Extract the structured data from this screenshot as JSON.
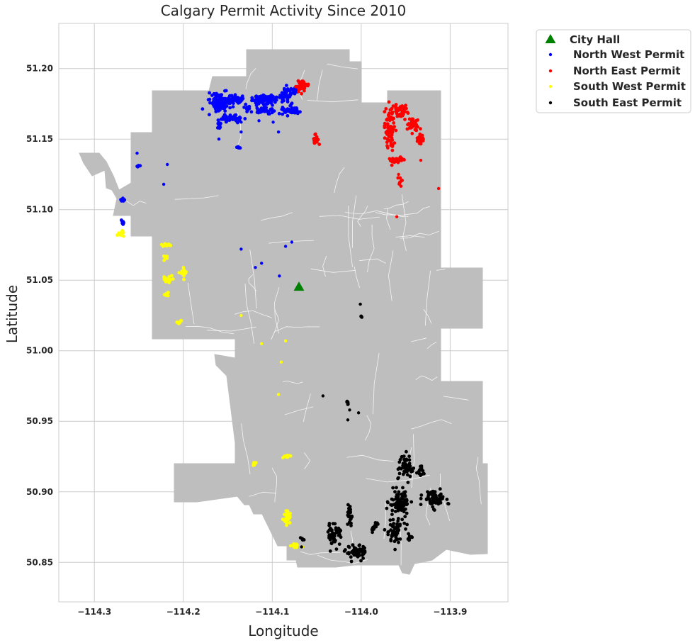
{
  "chart_data": {
    "type": "scatter",
    "title": "Calgary Permit Activity Since 2010",
    "xlabel": "Longitude",
    "ylabel": "Latitude",
    "xlim": [
      -114.34,
      -113.835
    ],
    "ylim": [
      50.822,
      51.232
    ],
    "x_ticks": [
      -114.3,
      -114.2,
      -114.1,
      -114.0,
      -113.9
    ],
    "x_tick_labels": [
      "−114.3",
      "−114.2",
      "−114.1",
      "−114.0",
      "−113.9"
    ],
    "y_ticks": [
      50.85,
      50.9,
      50.95,
      51.0,
      51.05,
      51.1,
      51.15,
      51.2
    ],
    "y_tick_labels": [
      "50.85",
      "50.90",
      "50.95",
      "51.00",
      "51.05",
      "51.10",
      "51.15",
      "51.20"
    ],
    "grid": true,
    "legend_position": "outside-top-right",
    "colors": {
      "city_boundary": "#bebebe",
      "district_lines": "#ffffff",
      "grid": "#cccccc",
      "axes_frame": "#cccccc",
      "city_hall": "#008000"
    },
    "city_hall": {
      "name": "City Hall",
      "x": -114.07,
      "y": 51.045,
      "marker": "triangle",
      "color": "#008000"
    },
    "series": [
      {
        "name": "North West Permit",
        "color": "#0000ff",
        "clusters": [
          {
            "x": -114.158,
            "y": 51.176,
            "rx": 0.012,
            "ry": 0.006,
            "n": 120
          },
          {
            "x": -114.14,
            "y": 51.178,
            "rx": 0.006,
            "ry": 0.003,
            "n": 45
          },
          {
            "x": -114.11,
            "y": 51.178,
            "rx": 0.014,
            "ry": 0.004,
            "n": 90
          },
          {
            "x": -114.085,
            "y": 51.182,
            "rx": 0.008,
            "ry": 0.005,
            "n": 50
          },
          {
            "x": -114.075,
            "y": 51.185,
            "rx": 0.003,
            "ry": 0.002,
            "n": 15
          },
          {
            "x": -114.145,
            "y": 51.165,
            "rx": 0.012,
            "ry": 0.003,
            "n": 45
          },
          {
            "x": -114.08,
            "y": 51.17,
            "rx": 0.01,
            "ry": 0.003,
            "n": 45
          },
          {
            "x": -114.11,
            "y": 51.17,
            "rx": 0.012,
            "ry": 0.002,
            "n": 40
          },
          {
            "x": -114.128,
            "y": 51.172,
            "rx": 0.004,
            "ry": 0.003,
            "n": 15
          },
          {
            "x": -114.16,
            "y": 51.16,
            "rx": 0.003,
            "ry": 0.004,
            "n": 15
          },
          {
            "x": -114.268,
            "y": 51.107,
            "rx": 0.003,
            "ry": 0.001,
            "n": 10
          },
          {
            "x": -114.268,
            "y": 51.091,
            "rx": 0.002,
            "ry": 0.002,
            "n": 8
          },
          {
            "x": -114.25,
            "y": 51.131,
            "rx": 0.003,
            "ry": 0.001,
            "n": 6
          },
          {
            "x": -114.137,
            "y": 51.144,
            "rx": 0.002,
            "ry": 0.001,
            "n": 6
          }
        ],
        "points": [
          [
            -114.252,
            51.14
          ],
          [
            -114.218,
            51.132
          ],
          [
            -114.222,
            51.118
          ],
          [
            -114.16,
            51.15
          ],
          [
            -114.135,
            51.162
          ],
          [
            -114.135,
            51.155
          ],
          [
            -114.115,
            51.163
          ],
          [
            -114.099,
            51.162
          ],
          [
            -114.093,
            51.155
          ],
          [
            -114.135,
            51.072
          ],
          [
            -114.112,
            51.062
          ],
          [
            -114.119,
            51.059
          ],
          [
            -114.078,
            51.077
          ],
          [
            -114.085,
            51.074
          ],
          [
            -114.092,
            51.053
          ]
        ]
      },
      {
        "name": "North East Permit",
        "color": "#ff0000",
        "clusters": [
          {
            "x": -114.067,
            "y": 51.188,
            "rx": 0.008,
            "ry": 0.004,
            "n": 40
          },
          {
            "x": -114.05,
            "y": 51.15,
            "rx": 0.004,
            "ry": 0.003,
            "n": 15
          },
          {
            "x": -113.968,
            "y": 51.155,
            "rx": 0.006,
            "ry": 0.018,
            "n": 70
          },
          {
            "x": -113.955,
            "y": 51.17,
            "rx": 0.008,
            "ry": 0.004,
            "n": 40
          },
          {
            "x": -113.942,
            "y": 51.16,
            "rx": 0.008,
            "ry": 0.006,
            "n": 40
          },
          {
            "x": -113.935,
            "y": 51.15,
            "rx": 0.005,
            "ry": 0.003,
            "n": 20
          },
          {
            "x": -113.96,
            "y": 51.135,
            "rx": 0.01,
            "ry": 0.002,
            "n": 30
          },
          {
            "x": -113.956,
            "y": 51.12,
            "rx": 0.002,
            "ry": 0.003,
            "n": 8
          }
        ],
        "points": [
          [
            -113.96,
            51.095
          ],
          [
            -113.933,
            51.135
          ],
          [
            -113.913,
            51.115
          ],
          [
            -113.958,
            51.125
          ]
        ]
      },
      {
        "name": "South West Permit",
        "color": "#ffff00",
        "clusters": [
          {
            "x": -114.27,
            "y": 51.083,
            "rx": 0.004,
            "ry": 0.002,
            "n": 15
          },
          {
            "x": -114.218,
            "y": 51.075,
            "rx": 0.006,
            "ry": 0.001,
            "n": 12
          },
          {
            "x": -114.22,
            "y": 51.066,
            "rx": 0.002,
            "ry": 0.002,
            "n": 6
          },
          {
            "x": -114.217,
            "y": 51.05,
            "rx": 0.005,
            "ry": 0.003,
            "n": 20
          },
          {
            "x": -114.2,
            "y": 51.055,
            "rx": 0.004,
            "ry": 0.003,
            "n": 15
          },
          {
            "x": -114.218,
            "y": 51.04,
            "rx": 0.003,
            "ry": 0.003,
            "n": 10
          },
          {
            "x": -114.204,
            "y": 51.021,
            "rx": 0.002,
            "ry": 0.002,
            "n": 6
          },
          {
            "x": -114.085,
            "y": 50.925,
            "rx": 0.005,
            "ry": 0.001,
            "n": 10
          },
          {
            "x": -114.12,
            "y": 50.919,
            "rx": 0.002,
            "ry": 0.002,
            "n": 6
          },
          {
            "x": -114.083,
            "y": 50.883,
            "rx": 0.004,
            "ry": 0.006,
            "n": 30
          },
          {
            "x": -114.075,
            "y": 50.862,
            "rx": 0.003,
            "ry": 0.002,
            "n": 12
          }
        ],
        "points": [
          [
            -114.135,
            51.025
          ],
          [
            -114.112,
            51.005
          ],
          [
            -114.085,
            51.007
          ],
          [
            -114.09,
            50.992
          ],
          [
            -114.093,
            50.969
          ],
          [
            -114.066,
            50.861
          ]
        ]
      },
      {
        "name": "South East Permit",
        "color": "#000000",
        "clusters": [
          {
            "x": -113.95,
            "y": 50.918,
            "rx": 0.008,
            "ry": 0.008,
            "n": 50
          },
          {
            "x": -113.933,
            "y": 50.916,
            "rx": 0.003,
            "ry": 0.005,
            "n": 15
          },
          {
            "x": -113.957,
            "y": 50.892,
            "rx": 0.012,
            "ry": 0.008,
            "n": 80
          },
          {
            "x": -113.918,
            "y": 50.895,
            "rx": 0.012,
            "ry": 0.006,
            "n": 70
          },
          {
            "x": -113.963,
            "y": 50.872,
            "rx": 0.01,
            "ry": 0.01,
            "n": 60
          },
          {
            "x": -113.945,
            "y": 50.868,
            "rx": 0.004,
            "ry": 0.002,
            "n": 15
          },
          {
            "x": -113.985,
            "y": 50.875,
            "rx": 0.004,
            "ry": 0.003,
            "n": 15
          },
          {
            "x": -114.013,
            "y": 50.882,
            "rx": 0.002,
            "ry": 0.008,
            "n": 25
          },
          {
            "x": -114.03,
            "y": 50.87,
            "rx": 0.008,
            "ry": 0.008,
            "n": 50
          },
          {
            "x": -114.005,
            "y": 50.857,
            "rx": 0.012,
            "ry": 0.005,
            "n": 55
          },
          {
            "x": -114.066,
            "y": 50.866,
            "rx": 0.003,
            "ry": 0.001,
            "n": 6
          },
          {
            "x": -114.015,
            "y": 50.963,
            "rx": 0.002,
            "ry": 0.002,
            "n": 6
          },
          {
            "x": -114.0,
            "y": 51.024,
            "rx": 0.001,
            "ry": 0.001,
            "n": 4
          }
        ],
        "points": [
          [
            -114.001,
            51.033
          ],
          [
            -114.043,
            50.968
          ],
          [
            -114.013,
            50.958
          ],
          [
            -114.015,
            50.951
          ],
          [
            -114.003,
            50.956
          ],
          [
            -114.067,
            50.861
          ]
        ]
      }
    ]
  }
}
